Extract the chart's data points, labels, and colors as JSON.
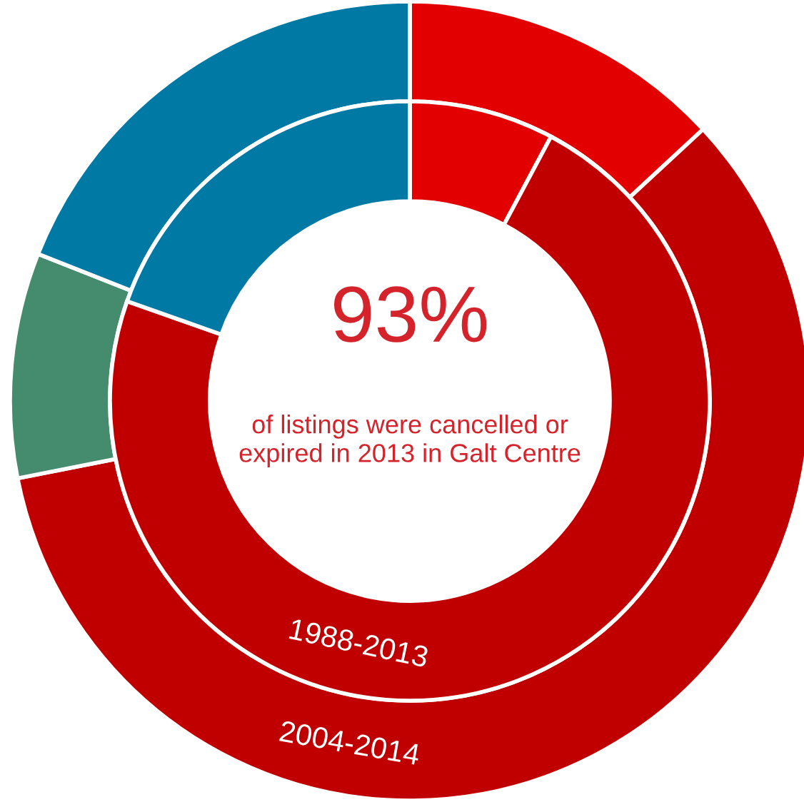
{
  "chart_data": {
    "type": "donut",
    "title": "93%",
    "subtitle": "of listings were cancelled or expired in 2013 in Galt Centre",
    "categories": [
      null,
      null,
      null,
      null
    ],
    "colors": [
      "#e30000",
      "#c00000",
      "#458b6e",
      "#0079a5"
    ],
    "series": [
      {
        "name": "2004-2014",
        "values": [
          13.1,
          58.8,
          9.1,
          19.0
        ]
      },
      {
        "name": "1988-2013",
        "values": [
          7.8,
          72.6,
          null,
          19.6
        ]
      }
    ],
    "legend": false
  }
}
